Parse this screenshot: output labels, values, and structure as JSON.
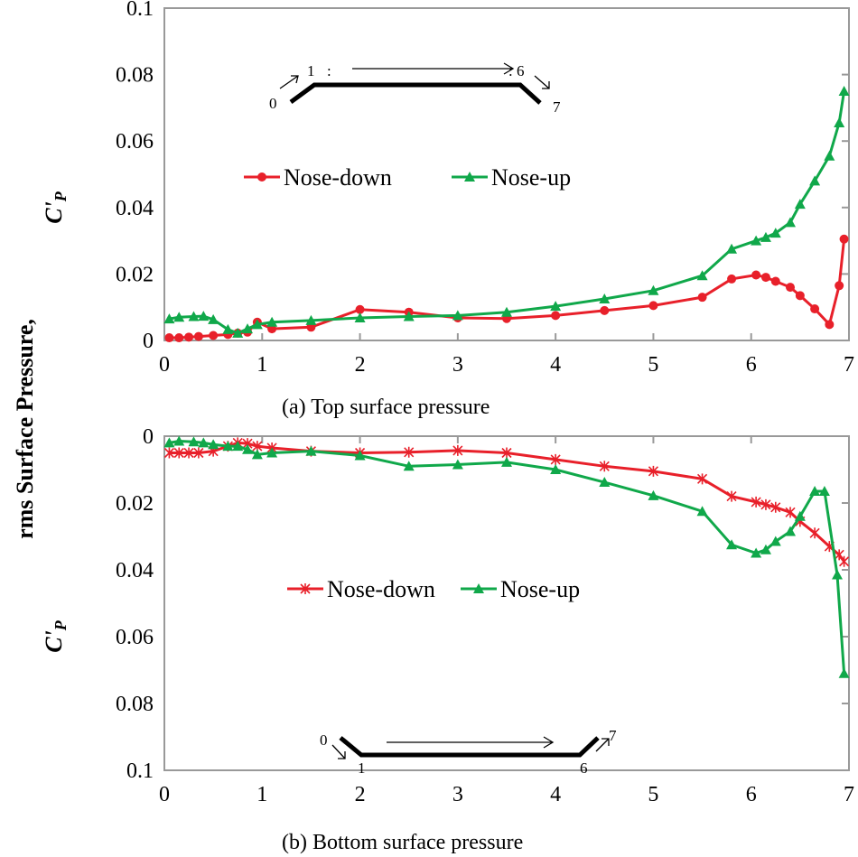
{
  "ylabel_line1": "rms Surface Pressure,",
  "ylabel_line2": "C'",
  "ylabel_sub": "P",
  "chart_data": [
    {
      "type": "line",
      "caption": "(a)   Top surface pressure",
      "xlim": [
        0,
        7
      ],
      "ylim": [
        0,
        0.1
      ],
      "inverted_y": false,
      "xticks": [
        "0",
        "1",
        "2",
        "3",
        "4",
        "5",
        "6",
        "7"
      ],
      "yticks": [
        "0",
        "0.02",
        "0.04",
        "0.06",
        "0.08",
        "0.1"
      ],
      "legend_placement": "center-left",
      "diagram_labels": [
        "0",
        "1",
        ":",
        ":",
        "6",
        "7"
      ],
      "series": [
        {
          "name": "Nose-down",
          "color": "#e8202a",
          "marker": "circle",
          "x": [
            0.05,
            0.15,
            0.25,
            0.35,
            0.5,
            0.65,
            0.75,
            0.85,
            0.95,
            1.1,
            1.5,
            2,
            2.5,
            3,
            3.5,
            4,
            4.5,
            5,
            5.5,
            5.8,
            6.05,
            6.15,
            6.25,
            6.4,
            6.5,
            6.65,
            6.8,
            6.9,
            6.95
          ],
          "y": [
            0.0008,
            0.0008,
            0.001,
            0.0012,
            0.0015,
            0.0018,
            0.0022,
            0.0025,
            0.0055,
            0.0035,
            0.004,
            0.0093,
            0.0085,
            0.0068,
            0.0066,
            0.0075,
            0.009,
            0.0105,
            0.013,
            0.0185,
            0.0197,
            0.019,
            0.0178,
            0.016,
            0.0135,
            0.0095,
            0.0048,
            0.0165,
            0.0305
          ]
        },
        {
          "name": "Nose-up",
          "color": "#10a84a",
          "marker": "triangle",
          "x": [
            0.05,
            0.15,
            0.3,
            0.4,
            0.5,
            0.65,
            0.75,
            0.85,
            0.95,
            1.1,
            1.5,
            2,
            2.5,
            3,
            3.5,
            4,
            4.5,
            5,
            5.5,
            5.8,
            6.05,
            6.15,
            6.25,
            6.4,
            6.5,
            6.65,
            6.8,
            6.9,
            6.95
          ],
          "y": [
            0.0065,
            0.007,
            0.0072,
            0.0073,
            0.0063,
            0.0033,
            0.0022,
            0.0035,
            0.0048,
            0.0055,
            0.006,
            0.0068,
            0.0072,
            0.0075,
            0.0085,
            0.0103,
            0.0125,
            0.015,
            0.0195,
            0.0275,
            0.03,
            0.031,
            0.0323,
            0.0355,
            0.041,
            0.048,
            0.0555,
            0.0655,
            0.075
          ]
        }
      ]
    },
    {
      "type": "line",
      "caption": "(b)   Bottom surface pressure",
      "xlim": [
        0,
        7
      ],
      "ylim": [
        0,
        0.1
      ],
      "inverted_y": true,
      "xticks": [
        "0",
        "1",
        "2",
        "3",
        "4",
        "5",
        "6",
        "7"
      ],
      "yticks": [
        "0",
        "0.02",
        "0.04",
        "0.06",
        "0.08",
        "0.1"
      ],
      "legend_placement": "center",
      "diagram_labels": [
        "0",
        "1",
        "6",
        "7"
      ],
      "series": [
        {
          "name": "Nose-down",
          "color": "#e8202a",
          "marker": "star",
          "x": [
            0.05,
            0.15,
            0.25,
            0.35,
            0.5,
            0.65,
            0.75,
            0.85,
            0.95,
            1.1,
            1.5,
            2,
            2.5,
            3,
            3.5,
            4,
            4.5,
            5,
            5.5,
            5.8,
            6.05,
            6.15,
            6.25,
            6.4,
            6.5,
            6.65,
            6.8,
            6.9,
            6.95
          ],
          "y": [
            0.005,
            0.005,
            0.005,
            0.005,
            0.0045,
            0.003,
            0.002,
            0.0022,
            0.003,
            0.0035,
            0.0045,
            0.005,
            0.0048,
            0.0043,
            0.005,
            0.007,
            0.009,
            0.0105,
            0.0128,
            0.018,
            0.0197,
            0.0205,
            0.0213,
            0.0228,
            0.0255,
            0.029,
            0.033,
            0.0355,
            0.0375
          ]
        },
        {
          "name": "Nose-up",
          "color": "#10a84a",
          "marker": "triangle",
          "x": [
            0.05,
            0.15,
            0.3,
            0.4,
            0.5,
            0.65,
            0.75,
            0.85,
            0.95,
            1.1,
            1.5,
            2,
            2.5,
            3,
            3.5,
            4,
            4.5,
            5,
            5.5,
            5.8,
            6.05,
            6.15,
            6.25,
            6.4,
            6.5,
            6.65,
            6.75,
            6.88,
            6.95
          ],
          "y": [
            0.002,
            0.0015,
            0.0017,
            0.002,
            0.0025,
            0.003,
            0.003,
            0.004,
            0.0055,
            0.005,
            0.0045,
            0.0058,
            0.009,
            0.0085,
            0.0078,
            0.01,
            0.0138,
            0.0178,
            0.0225,
            0.0325,
            0.035,
            0.034,
            0.0315,
            0.0285,
            0.024,
            0.0165,
            0.0165,
            0.0415,
            0.071
          ]
        }
      ]
    }
  ]
}
